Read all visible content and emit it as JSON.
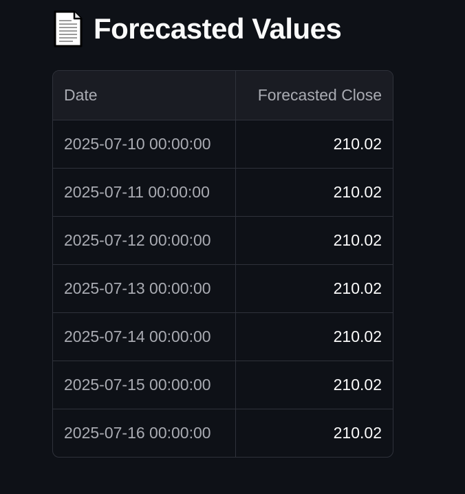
{
  "header": {
    "icon": "page-document-icon",
    "title": "Forecasted Values"
  },
  "table": {
    "columns": [
      "Date",
      "Forecasted Close"
    ],
    "rows": [
      {
        "date": "2025-07-10 00:00:00",
        "close": "210.02"
      },
      {
        "date": "2025-07-11 00:00:00",
        "close": "210.02"
      },
      {
        "date": "2025-07-12 00:00:00",
        "close": "210.02"
      },
      {
        "date": "2025-07-13 00:00:00",
        "close": "210.02"
      },
      {
        "date": "2025-07-14 00:00:00",
        "close": "210.02"
      },
      {
        "date": "2025-07-15 00:00:00",
        "close": "210.02"
      },
      {
        "date": "2025-07-16 00:00:00",
        "close": "210.02"
      }
    ]
  },
  "colors": {
    "background": "#0e1117",
    "header_background": "#1a1c23",
    "border": "#2f323b",
    "muted_text": "#a9abb2",
    "text": "#fafafa"
  }
}
